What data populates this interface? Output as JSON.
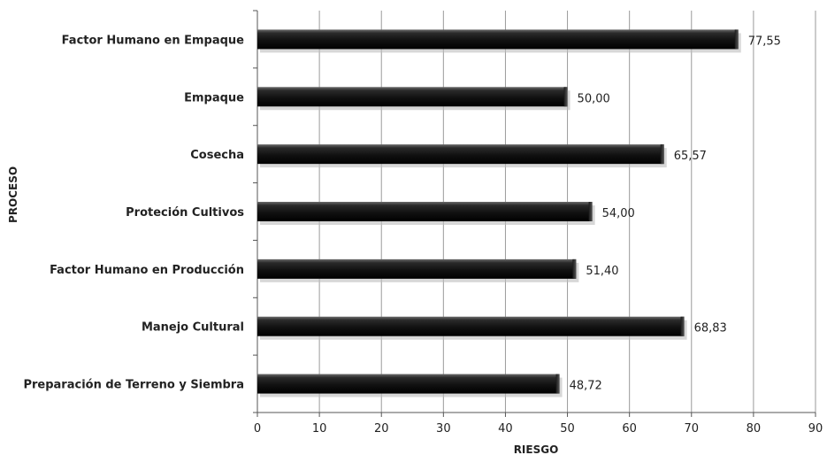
{
  "chart_data": {
    "type": "bar",
    "orientation": "horizontal",
    "categories": [
      "Factor Humano en Empaque",
      "Empaque",
      "Cosecha",
      "Proteción Cultivos",
      "Factor Humano en Producción",
      "Manejo Cultural",
      "Preparación de Terreno y Siembra"
    ],
    "values": [
      77.55,
      50.0,
      65.57,
      54.0,
      51.4,
      68.83,
      48.72
    ],
    "value_labels": [
      "77,55",
      "50,00",
      "65,57",
      "54,00",
      "51,40",
      "68,83",
      "48,72"
    ],
    "xlabel": "RIESGO",
    "ylabel": "PROCESO",
    "xlim": [
      0,
      90
    ],
    "xticks": [
      0,
      10,
      20,
      30,
      40,
      50,
      60,
      70,
      80,
      90
    ],
    "grid": "vertical",
    "bar_color": "#1a1a1a",
    "legend": "none"
  }
}
